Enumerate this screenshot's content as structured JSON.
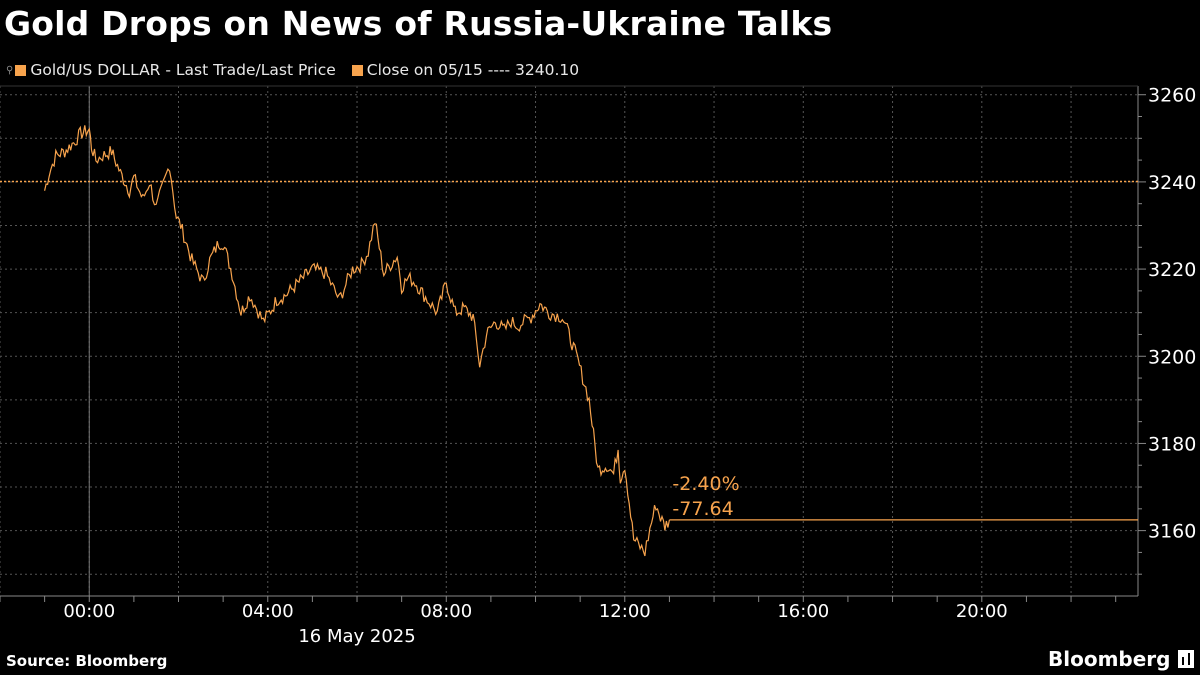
{
  "title": "Gold Drops on News of Russia-Ukraine Talks",
  "legend": {
    "series_label": "Gold/US DOLLAR - Last Trade/Last Price",
    "reference_label": "Close on 05/15 ---- 3240.10",
    "series_color": "#f7a34d",
    "reference_color": "#f7a34d"
  },
  "source": "Source: Bloomberg",
  "brand": "Bloomberg",
  "chart_data": {
    "type": "line",
    "title": "Gold Drops on News of Russia-Ukraine Talks",
    "xlabel": "16 May 2025",
    "ylabel": "",
    "x_ticks": [
      "00:00",
      "04:00",
      "08:00",
      "12:00",
      "16:00",
      "20:00"
    ],
    "x_tick_hours": [
      0,
      4,
      8,
      12,
      16,
      20
    ],
    "xlim_hours": [
      -2,
      23.5
    ],
    "y_ticks": [
      3160,
      3180,
      3200,
      3220,
      3240,
      3260
    ],
    "ylim": [
      3145,
      3262
    ],
    "grid": true,
    "reference_line": {
      "label": "Close on 05/15",
      "value": 3240.1
    },
    "annotations": [
      {
        "text": "-2.40%"
      },
      {
        "text": "-77.64"
      }
    ],
    "last_value": 3162.46,
    "series": [
      {
        "name": "Gold/US DOLLAR - Last Trade/Last Price",
        "x_hours": [
          -1.0,
          -0.9,
          -0.75,
          -0.55,
          -0.35,
          -0.2,
          0.0,
          0.05,
          0.15,
          0.3,
          0.5,
          0.7,
          0.9,
          1.0,
          1.2,
          1.35,
          1.5,
          1.65,
          1.8,
          1.95,
          2.05,
          2.3,
          2.55,
          2.7,
          2.9,
          3.0,
          3.2,
          3.4,
          3.6,
          3.75,
          3.9,
          4.1,
          4.2,
          4.4,
          4.6,
          4.8,
          5.0,
          5.3,
          5.6,
          5.9,
          6.1,
          6.25,
          6.4,
          6.6,
          6.9,
          7.0,
          7.15,
          7.3,
          7.5,
          7.8,
          8.0,
          8.2,
          8.4,
          8.6,
          8.75,
          8.9,
          9.1,
          9.3,
          9.45,
          9.6,
          9.9,
          10.1,
          10.3,
          10.6,
          10.75,
          10.95,
          11.2,
          11.4,
          11.6,
          11.75,
          11.85,
          11.9,
          12.0,
          12.2,
          12.45,
          12.6,
          12.7,
          12.8,
          12.9,
          13.0
        ],
        "y": [
          3238,
          3242,
          3246,
          3247,
          3249,
          3251,
          3252,
          3248,
          3245,
          3246,
          3247,
          3242,
          3238,
          3241,
          3236,
          3240,
          3234,
          3239,
          3244,
          3232,
          3230,
          3222,
          3217,
          3222,
          3226,
          3226,
          3219,
          3210,
          3214,
          3211,
          3208,
          3211,
          3213,
          3214,
          3216,
          3218,
          3220,
          3219,
          3213,
          3220,
          3221,
          3224,
          3231,
          3219,
          3223,
          3216,
          3218,
          3217,
          3214,
          3210,
          3217,
          3210,
          3211,
          3209,
          3198,
          3205,
          3208,
          3206,
          3208,
          3207,
          3209,
          3212,
          3210,
          3209,
          3205,
          3199,
          3190,
          3174,
          3175,
          3173,
          3179,
          3172,
          3175,
          3158,
          3155,
          3162,
          3166,
          3163,
          3161,
          3162.46
        ]
      }
    ]
  }
}
